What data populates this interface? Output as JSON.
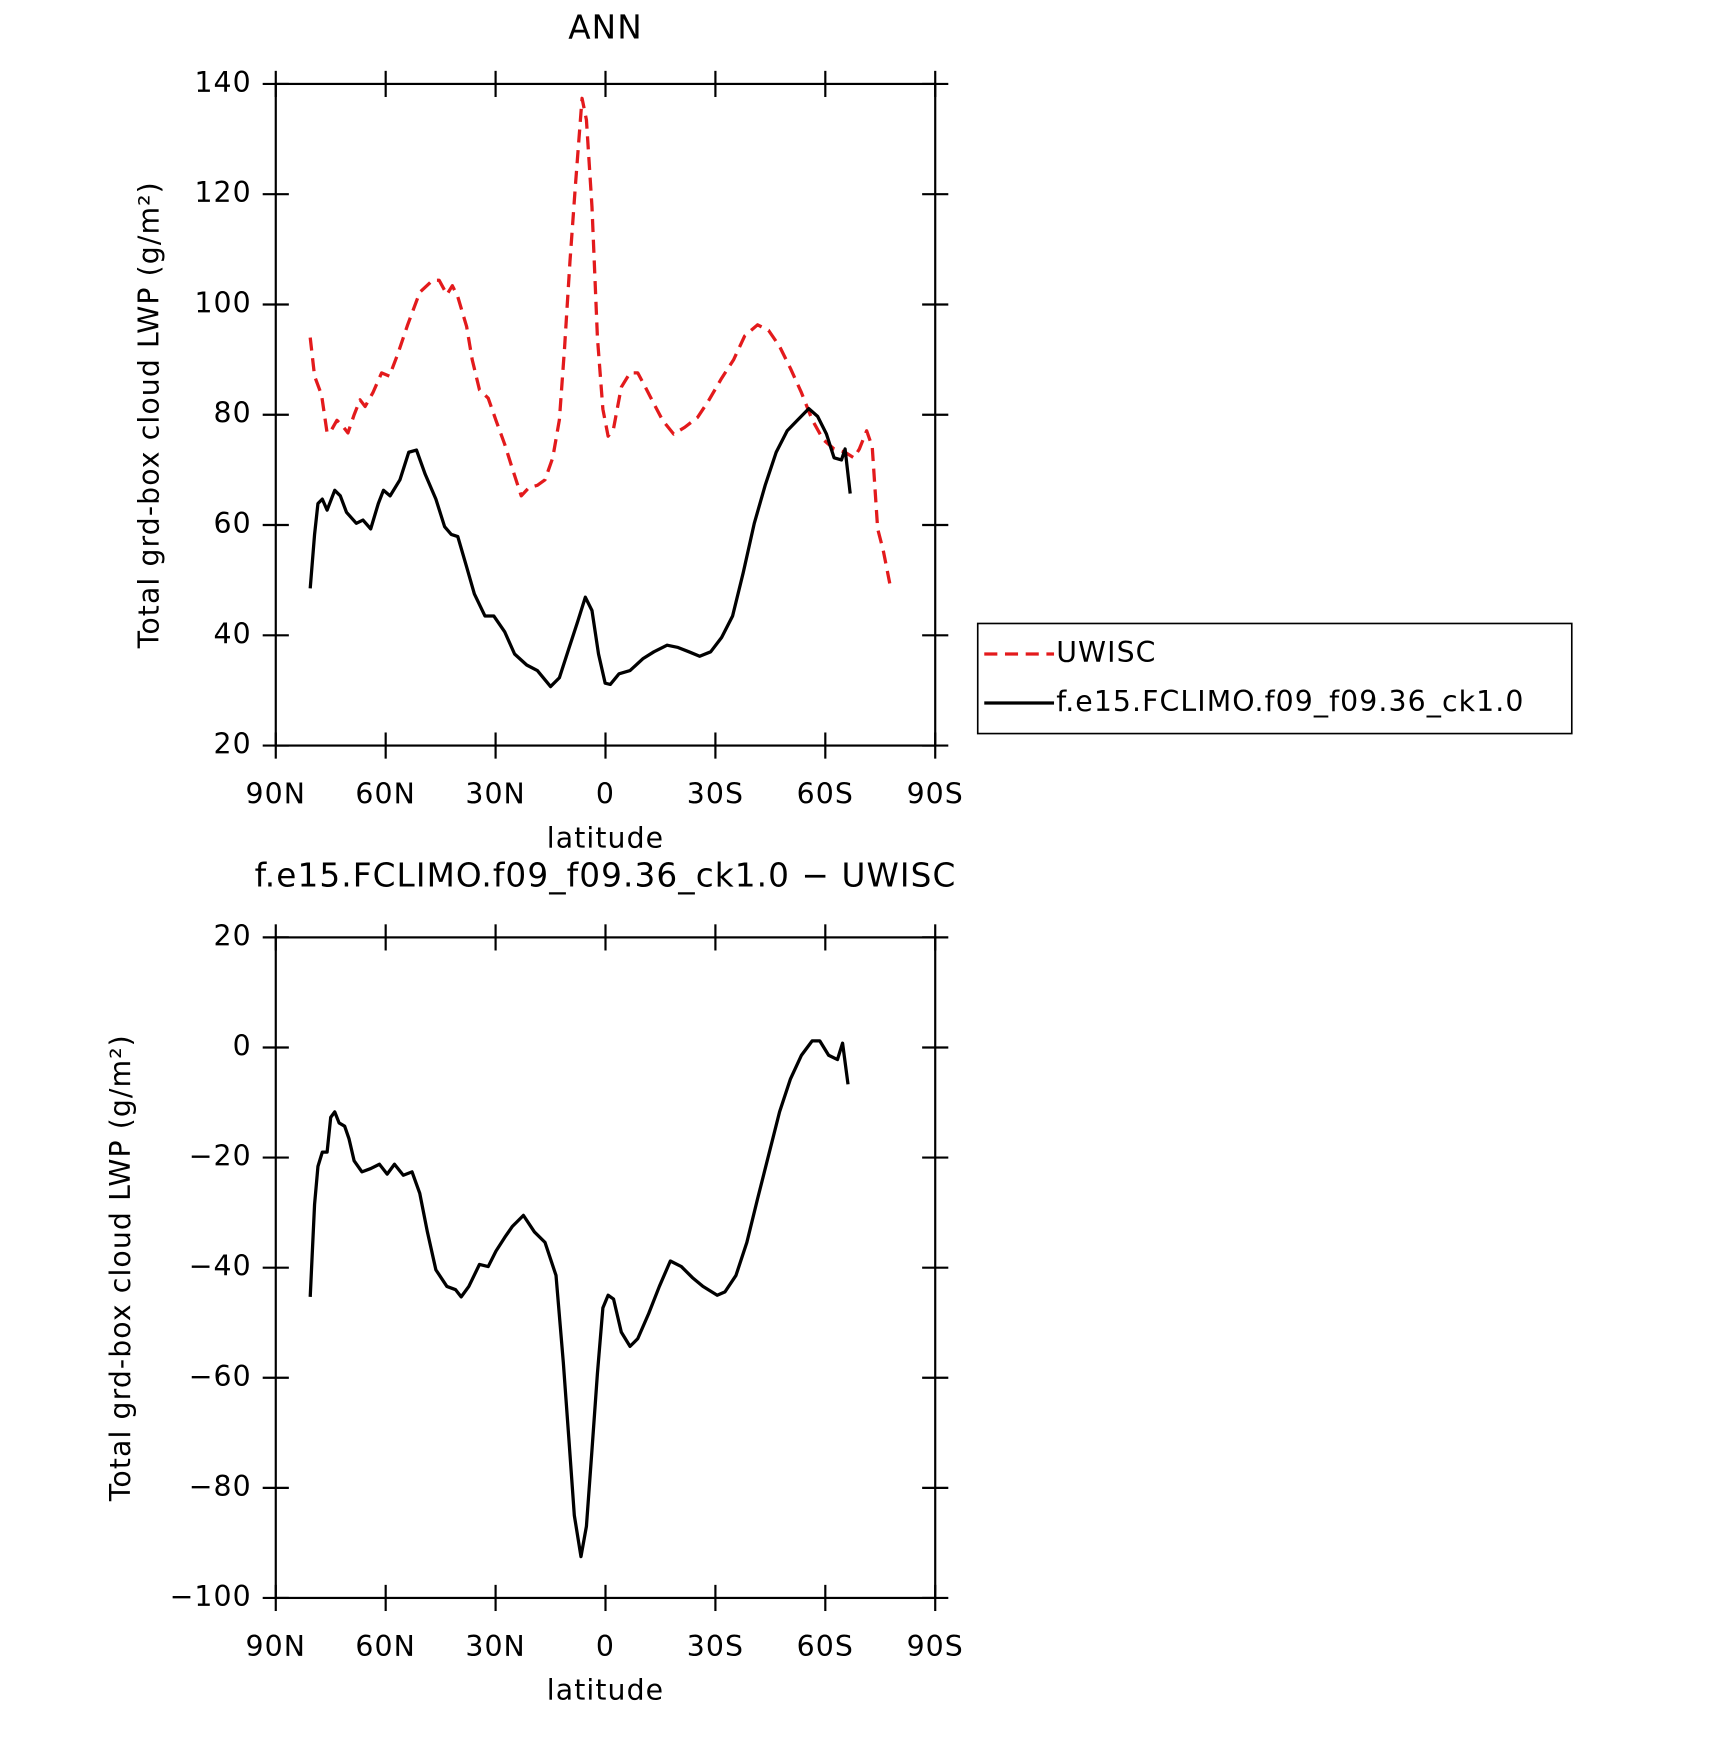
{
  "chart_data": [
    {
      "type": "line",
      "title": "ANN",
      "xlabel": "latitude",
      "ylabel": "Total grd-box cloud LWP (g/m²)",
      "xlim": [
        90,
        -90
      ],
      "xticks": [
        {
          "value": 90,
          "label": "90N"
        },
        {
          "value": 60,
          "label": "60N"
        },
        {
          "value": 30,
          "label": "30N"
        },
        0,
        {
          "value": -30,
          "label": "30S"
        },
        {
          "value": -60,
          "label": "60S"
        },
        {
          "value": -90,
          "label": "90S"
        }
      ],
      "ylim": [
        20,
        140
      ],
      "yticks": [
        20,
        40,
        60,
        80,
        100,
        120,
        140
      ],
      "legend": "right",
      "series": [
        {
          "name": "UWISC",
          "color": "#e31a1c",
          "dashed": true,
          "x": [
            80.6,
            79.4,
            77.5,
            76,
            75,
            73.3,
            71.8,
            70.3,
            68.6,
            67,
            65.6,
            63.5,
            61.1,
            59,
            56.7,
            54,
            50.7,
            47.2,
            45.4,
            43.3,
            41.8,
            40.3,
            37.9,
            36.4,
            34.4,
            32,
            29.9,
            27.5,
            25.4,
            23,
            20.9,
            18.6,
            16.5,
            14.4,
            12.6,
            11.2,
            9.7,
            8.2,
            6.4,
            5.2,
            3.7,
            2.2,
            0.7,
            -0.7,
            -2.2,
            -4.3,
            -6.7,
            -8.8,
            -10.9,
            -13.2,
            -15.6,
            -18.6,
            -21.6,
            -25.1,
            -28.1,
            -31.7,
            -35,
            -38,
            -41.5,
            -44.5,
            -47.5,
            -50.5,
            -53.5,
            -56.4,
            -59.4,
            -62.4,
            -65.4,
            -67.8,
            -69.3,
            -71.3,
            -72.8,
            -74.3,
            -75.8,
            -77.6
          ],
          "values": [
            94,
            87,
            83.6,
            76.7,
            77,
            79,
            78,
            76.7,
            80,
            82.7,
            81.5,
            84,
            87.6,
            87,
            91,
            96.3,
            102.2,
            104.4,
            104.4,
            101.8,
            103.4,
            101.4,
            96,
            90,
            84.5,
            83,
            79,
            74.6,
            70.2,
            65.3,
            66.8,
            67.2,
            68.2,
            72.2,
            79.1,
            92,
            107.8,
            121.6,
            137.4,
            133.5,
            117.7,
            94,
            81,
            76.1,
            77.5,
            85,
            87.6,
            87.6,
            85,
            82,
            79,
            76.5,
            77.7,
            79.5,
            82.5,
            86.6,
            90,
            94.3,
            96.3,
            95.3,
            92.4,
            88.4,
            84,
            79.1,
            75.5,
            73.8,
            73.2,
            72.2,
            73.8,
            77.1,
            74.2,
            59.3,
            55.4,
            49.4
          ]
        },
        {
          "name": "f.e15.FCLIMO.f09_f09.36_ck1.0",
          "color": "#000000",
          "dashed": false,
          "x": [
            80.6,
            79.4,
            78.5,
            77.3,
            76,
            73.9,
            72.4,
            70.7,
            68,
            66.2,
            64.1,
            62,
            60.6,
            58.8,
            56.1,
            53.7,
            51.6,
            49.2,
            46.3,
            43.9,
            42.1,
            40.3,
            37.9,
            35.8,
            32.9,
            30.5,
            27.5,
            24.8,
            21.5,
            18.6,
            15,
            12.6,
            10,
            7.6,
            5.5,
            3.7,
            1.9,
            0.1,
            -1.3,
            -3.7,
            -6.7,
            -10.3,
            -13.2,
            -16.8,
            -19.8,
            -22.8,
            -25.7,
            -28.7,
            -31.7,
            -34.7,
            -37.6,
            -40.6,
            -43.6,
            -46.6,
            -49.6,
            -52.5,
            -55.5,
            -57.9,
            -60.3,
            -62.4,
            -64.4,
            -65.4,
            -66.8
          ],
          "values": [
            48.5,
            58.3,
            63.9,
            64.7,
            62.7,
            66.3,
            65.3,
            62.3,
            60.3,
            60.9,
            59.3,
            63.9,
            66.3,
            65.3,
            68.2,
            73.2,
            73.6,
            69.2,
            64.7,
            59.7,
            58.3,
            57.9,
            52.4,
            47.5,
            43.5,
            43.5,
            40.6,
            36.6,
            34.6,
            33.6,
            30.7,
            32.3,
            37.6,
            42.5,
            46.9,
            44.5,
            36.6,
            31.3,
            31.1,
            33,
            33.6,
            35.8,
            37,
            38.2,
            37.8,
            37,
            36.2,
            37,
            39.6,
            43.5,
            51.4,
            60.3,
            67.2,
            73.2,
            77.1,
            79.1,
            81.1,
            79.7,
            76.5,
            72.2,
            71.8,
            73.8,
            65.7
          ]
        }
      ]
    },
    {
      "type": "line",
      "title": "f.e15.FCLIMO.f09_f09.36_ck1.0 − UWISC",
      "xlabel": "latitude",
      "ylabel": "Total grd-box cloud LWP (g/m²)",
      "xlim": [
        90,
        -90
      ],
      "xticks": [
        {
          "value": 90,
          "label": "90N"
        },
        {
          "value": 60,
          "label": "60N"
        },
        {
          "value": 30,
          "label": "30N"
        },
        0,
        {
          "value": -30,
          "label": "30S"
        },
        {
          "value": -60,
          "label": "60S"
        },
        {
          "value": -90,
          "label": "90S"
        }
      ],
      "ylim": [
        -100,
        20
      ],
      "yticks": [
        {
          "value": -100,
          "label": "−100"
        },
        {
          "value": -80,
          "label": "−80"
        },
        {
          "value": -60,
          "label": "−60"
        },
        {
          "value": -40,
          "label": "−40"
        },
        {
          "value": -20,
          "label": "−20"
        },
        0,
        20
      ],
      "series": [
        {
          "color": "#000000",
          "dashed": false,
          "x": [
            80.6,
            79.4,
            78.5,
            77.3,
            76,
            75,
            73.9,
            72.7,
            71.2,
            70,
            68.6,
            66.5,
            64.1,
            61.7,
            59.6,
            57.6,
            55.2,
            52.8,
            50.7,
            48.6,
            46.3,
            43.3,
            40.9,
            39.4,
            37.3,
            34.4,
            32,
            29.9,
            27.5,
            25.4,
            22.4,
            19.4,
            16.5,
            13.5,
            11.5,
            10,
            8.5,
            6.7,
            5.2,
            3.7,
            2.2,
            0.7,
            -0.7,
            -2.2,
            -4.3,
            -6.7,
            -8.8,
            -11.8,
            -14.7,
            -17.7,
            -20.7,
            -23.7,
            -26.6,
            -30.5,
            -32.6,
            -35.6,
            -38.6,
            -41.5,
            -44.5,
            -47.5,
            -50.5,
            -53.5,
            -56.4,
            -58.5,
            -60.9,
            -63.3,
            -64.7,
            -66.2
          ],
          "values": [
            -45.3,
            -28.5,
            -21.6,
            -19,
            -19,
            -12.7,
            -11.7,
            -13.7,
            -14.3,
            -16.6,
            -20.6,
            -22.6,
            -22,
            -21.2,
            -23,
            -21.2,
            -23.2,
            -22.6,
            -26.5,
            -33.5,
            -40.4,
            -43.4,
            -44,
            -45.3,
            -43.4,
            -39.4,
            -39.8,
            -37,
            -34.5,
            -32.5,
            -30.5,
            -33.5,
            -35.4,
            -41.4,
            -57.2,
            -71.1,
            -85,
            -92.5,
            -87,
            -73.1,
            -59.2,
            -47.3,
            -45,
            -45.7,
            -51.7,
            -54.3,
            -52.9,
            -48.3,
            -43.4,
            -38.8,
            -39.8,
            -41.8,
            -43.4,
            -45,
            -44.4,
            -41.4,
            -35.4,
            -27.5,
            -19.6,
            -11.7,
            -5.7,
            -1.4,
            1.2,
            1.2,
            -1.4,
            -2.2,
            0.8,
            -6.7
          ]
        }
      ]
    }
  ]
}
